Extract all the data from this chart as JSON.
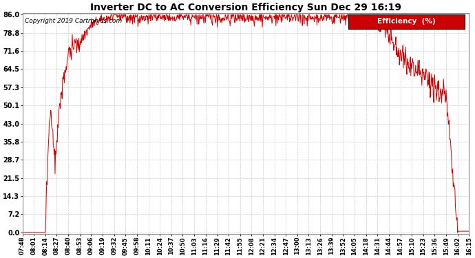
{
  "title": "Inverter DC to AC Conversion Efficiency Sun Dec 29 16:19",
  "copyright": "Copyright 2019 Cartronics.com",
  "legend_label": "Efficiency  (%)",
  "legend_bg": "#cc0000",
  "legend_fg": "#ffffff",
  "line_color": "#cc0000",
  "bg_color": "#ffffff",
  "plot_bg": "#ffffff",
  "grid_color": "#aaaaaa",
  "yticks": [
    0.0,
    7.2,
    14.3,
    21.5,
    28.7,
    35.8,
    43.0,
    50.1,
    57.3,
    64.5,
    71.6,
    78.8,
    86.0
  ],
  "xtick_labels": [
    "07:48",
    "08:01",
    "08:14",
    "08:27",
    "08:40",
    "08:53",
    "09:06",
    "09:19",
    "09:32",
    "09:45",
    "09:58",
    "10:11",
    "10:24",
    "10:37",
    "10:50",
    "11:03",
    "11:16",
    "11:29",
    "11:42",
    "11:55",
    "12:08",
    "12:21",
    "12:34",
    "12:47",
    "13:00",
    "13:13",
    "13:26",
    "13:39",
    "13:52",
    "14:05",
    "14:18",
    "14:31",
    "14:44",
    "14:57",
    "15:10",
    "15:23",
    "15:36",
    "15:49",
    "16:02",
    "16:15"
  ],
  "ymin": 0.0,
  "ymax": 86.0,
  "total_minutes": 507,
  "n_points": 1014
}
